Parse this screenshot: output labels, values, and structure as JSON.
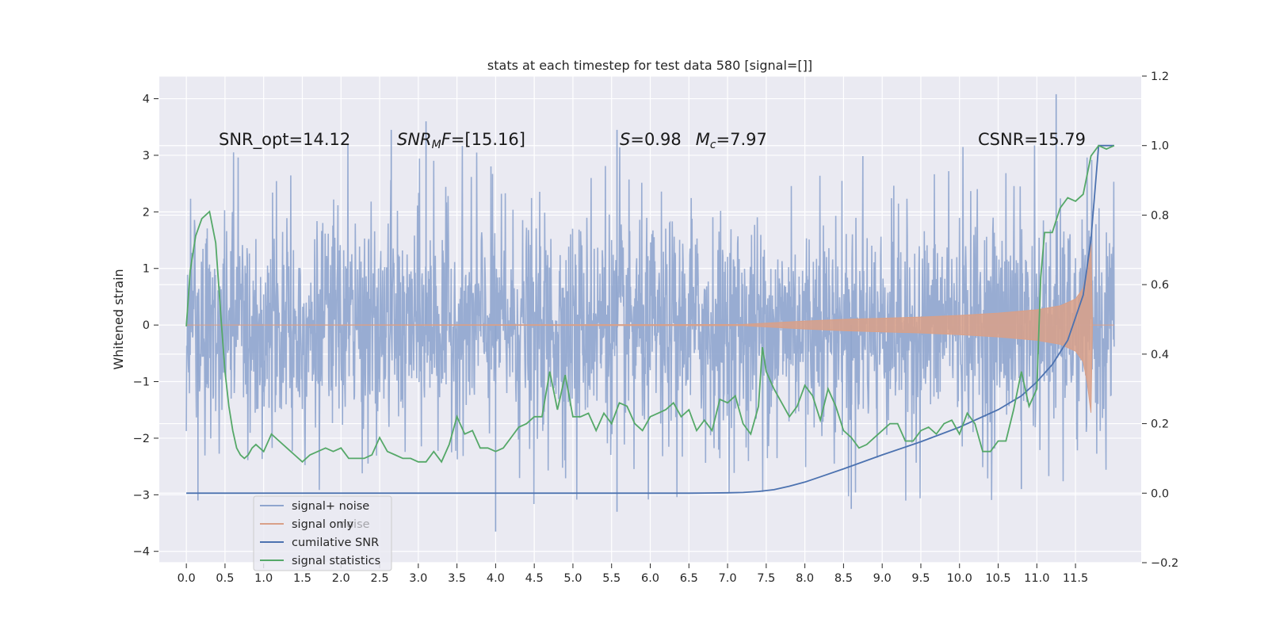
{
  "chart_data": {
    "type": "line",
    "title": "stats at each timestep for test data 580 [signal=[]]",
    "ylabel": "Whitened strain",
    "xlabel": "",
    "xlim": [
      -0.35,
      12.35
    ],
    "ylim": [
      -4.2,
      4.4
    ],
    "y2lim": [
      -0.2,
      1.2
    ],
    "x_ticks": [
      0.0,
      0.5,
      1.0,
      1.5,
      2.0,
      2.5,
      3.0,
      3.5,
      4.0,
      4.5,
      5.0,
      5.5,
      6.0,
      6.5,
      7.0,
      7.5,
      8.0,
      8.5,
      9.0,
      9.5,
      10.0,
      10.5,
      11.0,
      11.5
    ],
    "x_tick_labels": [
      "0.0",
      "0.5",
      "1.0",
      "1.5",
      "2.0",
      "2.5",
      "3.0",
      "3.5",
      "4.0",
      "4.5",
      "5.0",
      "5.5",
      "6.0",
      "6.5",
      "7.0",
      "7.5",
      "8.0",
      "8.5",
      "9.0",
      "9.5",
      "10.0",
      "10.5",
      "11.0",
      "11.5"
    ],
    "y_ticks": [
      4,
      3,
      2,
      1,
      0,
      -1,
      -2,
      -3,
      -4
    ],
    "y_tick_labels": [
      "4",
      "3",
      "2",
      "1",
      "0",
      "−1",
      "−2",
      "−3",
      "−4"
    ],
    "y2_ticks": [
      1.2,
      1.0,
      0.8,
      0.6,
      0.4,
      0.2,
      0.0,
      -0.2
    ],
    "y2_tick_labels": [
      "1.2",
      "1.0",
      "0.8",
      "0.6",
      "0.4",
      "0.2",
      "0.0",
      "−0.2"
    ],
    "annotations": [
      {
        "text": "SNR_opt=14.12",
        "x": 0.2,
        "y": 3.2
      },
      {
        "text": "SNR_MF=[15.16]",
        "x": 2.6,
        "y": 3.2
      },
      {
        "text": "S=0.98   M_c=7.97",
        "x": 5.6,
        "y": 3.2
      },
      {
        "text": "CSNR=15.79",
        "x": 10.4,
        "y": 3.2
      }
    ],
    "legend": {
      "placement": "lower-left",
      "entries": [
        "signal+ noise",
        "signal only",
        "cumilative SNR",
        "signal statistics"
      ],
      "ghost_text": "noise"
    },
    "series": [
      {
        "name": "signal+ noise",
        "color": "#8FA5CE",
        "axis": "left",
        "x_range": [
          0.0,
          12.0
        ],
        "amplitude_envelope": 1.85,
        "peak_max": 4.08,
        "peak_min": -3.65
      },
      {
        "name": "signal only",
        "color": "#D9A088",
        "axis": "left",
        "x": [
          0,
          7.2,
          7.6,
          8.0,
          8.5,
          9.0,
          9.5,
          10.0,
          10.5,
          11.0,
          11.3,
          11.5,
          11.6,
          11.65,
          11.7,
          11.72,
          12.0
        ],
        "y_upper": [
          0,
          0.01,
          0.04,
          0.07,
          0.1,
          0.12,
          0.14,
          0.17,
          0.21,
          0.27,
          0.34,
          0.46,
          0.65,
          1.0,
          1.45,
          0.0,
          0.0
        ],
        "y_lower": [
          0,
          -0.01,
          -0.04,
          -0.07,
          -0.1,
          -0.12,
          -0.14,
          -0.17,
          -0.21,
          -0.27,
          -0.34,
          -0.46,
          -0.65,
          -1.0,
          -1.55,
          0.0,
          0.0
        ]
      },
      {
        "name": "cumilative SNR",
        "color": "#4C72B0",
        "axis": "right",
        "x": [
          0,
          1,
          2,
          3,
          4,
          5,
          6,
          6.5,
          7.0,
          7.2,
          7.4,
          7.6,
          7.8,
          8.0,
          8.2,
          8.5,
          9.0,
          9.5,
          10.0,
          10.5,
          10.8,
          11.0,
          11.2,
          11.4,
          11.6,
          11.7,
          11.8,
          11.9,
          12.0
        ],
        "values": [
          0,
          0,
          0,
          0,
          0,
          0,
          0,
          0,
          0.001,
          0.002,
          0.005,
          0.01,
          0.02,
          0.032,
          0.047,
          0.07,
          0.11,
          0.148,
          0.19,
          0.24,
          0.28,
          0.32,
          0.37,
          0.44,
          0.57,
          0.73,
          1.0,
          1.0,
          1.0
        ]
      },
      {
        "name": "signal statistics",
        "color": "#55A868",
        "axis": "right",
        "x": [
          0.0,
          0.05,
          0.12,
          0.2,
          0.3,
          0.38,
          0.45,
          0.5,
          0.55,
          0.6,
          0.65,
          0.7,
          0.75,
          0.8,
          0.85,
          0.9,
          0.95,
          1.0,
          1.1,
          1.2,
          1.3,
          1.4,
          1.5,
          1.6,
          1.7,
          1.8,
          1.9,
          2.0,
          2.1,
          2.2,
          2.3,
          2.4,
          2.5,
          2.6,
          2.7,
          2.8,
          2.9,
          3.0,
          3.1,
          3.2,
          3.3,
          3.4,
          3.5,
          3.6,
          3.7,
          3.8,
          3.9,
          4.0,
          4.1,
          4.2,
          4.3,
          4.4,
          4.5,
          4.6,
          4.7,
          4.8,
          4.9,
          5.0,
          5.1,
          5.2,
          5.3,
          5.4,
          5.5,
          5.6,
          5.7,
          5.8,
          5.9,
          6.0,
          6.1,
          6.2,
          6.3,
          6.4,
          6.5,
          6.6,
          6.7,
          6.8,
          6.9,
          7.0,
          7.1,
          7.2,
          7.3,
          7.4,
          7.45,
          7.5,
          7.6,
          7.7,
          7.8,
          7.9,
          8.0,
          8.1,
          8.2,
          8.3,
          8.4,
          8.5,
          8.6,
          8.7,
          8.8,
          8.9,
          9.0,
          9.1,
          9.2,
          9.3,
          9.4,
          9.5,
          9.6,
          9.7,
          9.8,
          9.9,
          10.0,
          10.1,
          10.2,
          10.3,
          10.4,
          10.5,
          10.6,
          10.7,
          10.8,
          10.9,
          11.0,
          11.05,
          11.1,
          11.2,
          11.3,
          11.4,
          11.5,
          11.6,
          11.7,
          11.8,
          11.9,
          12.0
        ],
        "values": [
          0.48,
          0.64,
          0.74,
          0.79,
          0.81,
          0.72,
          0.5,
          0.35,
          0.25,
          0.18,
          0.13,
          0.11,
          0.1,
          0.11,
          0.13,
          0.14,
          0.13,
          0.12,
          0.17,
          0.15,
          0.13,
          0.11,
          0.09,
          0.11,
          0.12,
          0.13,
          0.12,
          0.13,
          0.1,
          0.1,
          0.1,
          0.11,
          0.16,
          0.12,
          0.11,
          0.1,
          0.1,
          0.09,
          0.09,
          0.12,
          0.09,
          0.14,
          0.22,
          0.17,
          0.18,
          0.13,
          0.13,
          0.12,
          0.13,
          0.16,
          0.19,
          0.2,
          0.22,
          0.22,
          0.35,
          0.24,
          0.34,
          0.22,
          0.22,
          0.23,
          0.18,
          0.23,
          0.2,
          0.26,
          0.25,
          0.2,
          0.18,
          0.22,
          0.23,
          0.24,
          0.26,
          0.22,
          0.24,
          0.18,
          0.21,
          0.18,
          0.27,
          0.26,
          0.28,
          0.2,
          0.17,
          0.25,
          0.42,
          0.35,
          0.3,
          0.26,
          0.22,
          0.25,
          0.31,
          0.28,
          0.21,
          0.3,
          0.25,
          0.18,
          0.16,
          0.13,
          0.14,
          0.16,
          0.18,
          0.2,
          0.2,
          0.15,
          0.15,
          0.18,
          0.19,
          0.17,
          0.2,
          0.21,
          0.17,
          0.23,
          0.2,
          0.12,
          0.12,
          0.15,
          0.15,
          0.24,
          0.35,
          0.25,
          0.3,
          0.62,
          0.75,
          0.75,
          0.82,
          0.85,
          0.84,
          0.86,
          0.97,
          1.0,
          0.99,
          1.0
        ]
      }
    ]
  }
}
